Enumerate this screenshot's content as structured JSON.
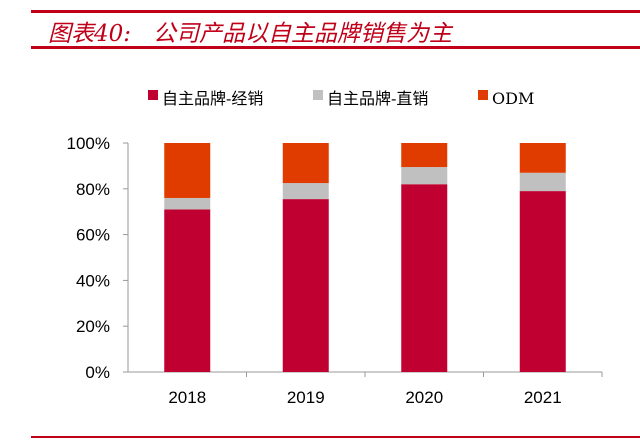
{
  "title": "图表40:   公司产品以自主品牌销售为主",
  "chart_data": {
    "type": "bar",
    "stacked": true,
    "title": "图表40: 公司产品以自主品牌销售为主",
    "categories": [
      "2018",
      "2019",
      "2020",
      "2021"
    ],
    "series": [
      {
        "name": "自主品牌-经销",
        "color": "#c00030",
        "values": [
          71,
          75.5,
          82,
          79
        ]
      },
      {
        "name": "自主品牌-直销",
        "color": "#c0c0c0",
        "values": [
          5,
          7,
          7.5,
          8
        ]
      },
      {
        "name": "ODM",
        "color": "#e03c00",
        "values": [
          24,
          17.5,
          10.5,
          13
        ]
      }
    ],
    "ylim": [
      0,
      100
    ],
    "yticks": [
      "0%",
      "20%",
      "40%",
      "60%",
      "80%",
      "100%"
    ],
    "legend": "top"
  }
}
